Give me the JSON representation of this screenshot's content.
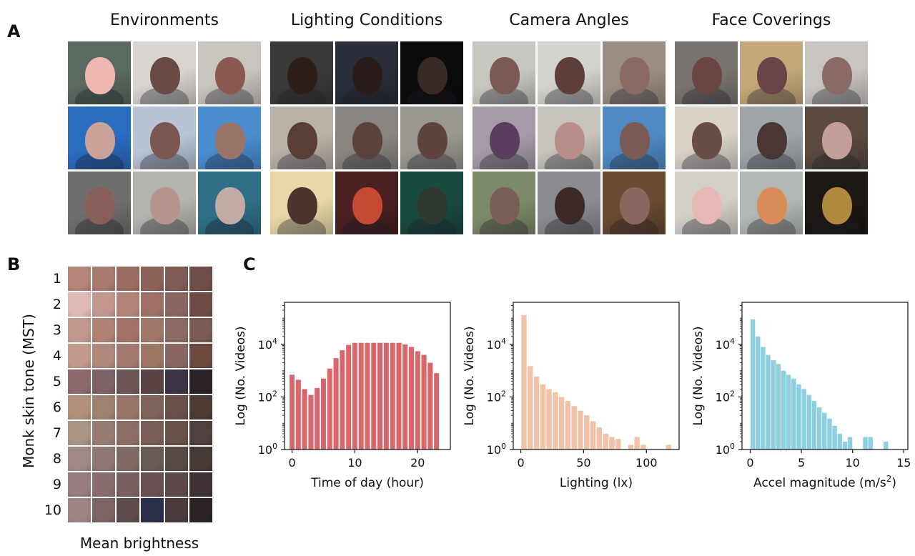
{
  "panels": {
    "a": "A",
    "b": "B",
    "c": "C"
  },
  "panel_a": {
    "groups": [
      {
        "title": "Environments",
        "cells": [
          {
            "bg": "#5a6a60",
            "face": "#eeb8b0"
          },
          {
            "bg": "#d8d4cf",
            "face": "#6a4a46"
          },
          {
            "bg": "#c9c4bd",
            "face": "#8a5a52"
          },
          {
            "bg": "#2a6cc0",
            "face": "#caa29a"
          },
          {
            "bg": "#b8c4d4",
            "face": "#7a5750"
          },
          {
            "bg": "#4a8ed0",
            "face": "#9a7469"
          },
          {
            "bg": "#6f6f6d",
            "face": "#8a5e58"
          },
          {
            "bg": "#b5b3ae",
            "face": "#b7958d"
          },
          {
            "bg": "#2f6f86",
            "face": "#c2aba4"
          }
        ]
      },
      {
        "title": "Lighting Conditions",
        "cells": [
          {
            "bg": "#3c3a38",
            "face": "#2e1e1a"
          },
          {
            "bg": "#2a2e3a",
            "face": "#2a1c1a"
          },
          {
            "bg": "#0c0c0c",
            "face": "#3a2a26"
          },
          {
            "bg": "#b9b2a8",
            "face": "#5a3e36"
          },
          {
            "bg": "#8a8580",
            "face": "#5b433c"
          },
          {
            "bg": "#9a9790",
            "face": "#5e443c"
          },
          {
            "bg": "#e8d8a8",
            "face": "#4a362e"
          },
          {
            "bg": "#4a2020",
            "face": "#c44a34"
          },
          {
            "bg": "#184a40",
            "face": "#2e3830"
          }
        ]
      },
      {
        "title": "Camera Angles",
        "cells": [
          {
            "bg": "#c8c6c0",
            "face": "#7a5a52"
          },
          {
            "bg": "#d4d2cd",
            "face": "#5e3e38"
          },
          {
            "bg": "#9a8e84",
            "face": "#8c6a64"
          },
          {
            "bg": "#a69aa8",
            "face": "#5a3e5e"
          },
          {
            "bg": "#c6c2bc",
            "face": "#b98e88"
          },
          {
            "bg": "#4f8ac4",
            "face": "#7a5a54"
          },
          {
            "bg": "#7c8a6a",
            "face": "#7a5e58"
          },
          {
            "bg": "#8a8c90",
            "face": "#3c2a28"
          },
          {
            "bg": "#6a4a30",
            "face": "#8c6460"
          }
        ]
      },
      {
        "title": "Face Coverings",
        "cells": [
          {
            "bg": "#7a7470",
            "face": "#6a4642"
          },
          {
            "bg": "#c4a878",
            "face": "#6a4448"
          },
          {
            "bg": "#c8c4c0",
            "face": "#8a6a64"
          },
          {
            "bg": "#d8d2c8",
            "face": "#6a4c46"
          },
          {
            "bg": "#9ea4a8",
            "face": "#4a3632"
          },
          {
            "bg": "#5a4a40",
            "face": "#c49e98"
          },
          {
            "bg": "#d4cfc8",
            "face": "#e6b8b4"
          },
          {
            "bg": "#b4b8b4",
            "face": "#d88c58"
          },
          {
            "bg": "#1c1814",
            "face": "#b0883e"
          }
        ]
      }
    ]
  },
  "panel_b": {
    "y_label": "Monk skin tone (MST)",
    "x_label": "Mean brightness",
    "rows": [
      {
        "label": "1",
        "swatches": [
          "#b48478",
          "#a87a70",
          "#9a6c62",
          "#8c625a",
          "#7e5a52",
          "#6e4e48"
        ]
      },
      {
        "label": "2",
        "swatches": [
          "#e0b8b4",
          "#c49690",
          "#b28478",
          "#a07066",
          "#8c6660",
          "#6e4c44"
        ]
      },
      {
        "label": "3",
        "swatches": [
          "#c09890",
          "#b08274",
          "#a27268",
          "#a0786a",
          "#8c6a64",
          "#7a5a54"
        ]
      },
      {
        "label": "4",
        "swatches": [
          "#c49a8a",
          "#b0887c",
          "#a47a70",
          "#9e7664",
          "#8a6662",
          "#6c4a40"
        ]
      },
      {
        "label": "5",
        "swatches": [
          "#8a6a6a",
          "#7c6264",
          "#6c5656",
          "#5c4444",
          "#3c3444",
          "#2c2428"
        ]
      },
      {
        "label": "6",
        "swatches": [
          "#b09078",
          "#a08070",
          "#9a7468",
          "#7e625a",
          "#6a5048",
          "#4c3a34"
        ]
      },
      {
        "label": "7",
        "swatches": [
          "#a89484",
          "#987c74",
          "#8c6e66",
          "#7c5e58",
          "#6a504a",
          "#504040"
        ]
      },
      {
        "label": "8",
        "swatches": [
          "#a08886",
          "#8e7876",
          "#806a66",
          "#6a5a56",
          "#5a4a46",
          "#463a36"
        ]
      },
      {
        "label": "9",
        "swatches": [
          "#9a7c80",
          "#8a6c6e",
          "#7a5e60",
          "#6a5054",
          "#5c4a4a",
          "#3e3234"
        ]
      },
      {
        "label": "10",
        "swatches": [
          "#a08484",
          "#7a6464",
          "#5e4c4c",
          "#2a304a",
          "#4a3c3c",
          "#2c2424"
        ]
      }
    ]
  },
  "chart_data": [
    {
      "type": "bar",
      "color": "#d9666b",
      "ylabel": "Log (No. Videos)",
      "xlabel": "Time of day (hour)",
      "y_scale": "log",
      "ylim": [
        1,
        400000
      ],
      "xlim": [
        -1.2,
        25.2
      ],
      "y_ticks": [
        {
          "value": 1,
          "exp": "0"
        },
        {
          "value": 100,
          "exp": "2"
        },
        {
          "value": 10000,
          "exp": "4"
        }
      ],
      "y_tick_base": "10",
      "x_ticks": [
        "0",
        "10",
        "20"
      ],
      "x_tick_values": [
        0,
        10,
        20
      ],
      "bar_width": 0.8,
      "x": [
        0,
        1,
        2,
        3,
        4,
        5,
        6,
        7,
        8,
        9,
        10,
        11,
        12,
        13,
        14,
        15,
        16,
        17,
        18,
        19,
        20,
        21,
        22,
        23
      ],
      "values": [
        700,
        450,
        200,
        120,
        220,
        500,
        1200,
        3000,
        6000,
        9500,
        11500,
        11500,
        11500,
        11500,
        11500,
        11500,
        11500,
        11500,
        10000,
        8000,
        5500,
        4000,
        2000,
        800
      ]
    },
    {
      "type": "bar",
      "color": "#f2c2a8",
      "ylabel": "Log (No. Videos)",
      "xlabel": "Lighting (lx)",
      "y_scale": "log",
      "ylim": [
        1,
        400000
      ],
      "xlim": [
        -6,
        126
      ],
      "y_ticks": [
        {
          "value": 1,
          "exp": "0"
        },
        {
          "value": 100,
          "exp": "2"
        },
        {
          "value": 10000,
          "exp": "4"
        }
      ],
      "y_tick_base": "10",
      "x_ticks": [
        "0",
        "50",
        "100"
      ],
      "x_tick_values": [
        0,
        50,
        100
      ],
      "bar_width": 4.2,
      "x": [
        2.5,
        7.5,
        12.5,
        17.5,
        22.5,
        27.5,
        32.5,
        37.5,
        42.5,
        47.5,
        52.5,
        57.5,
        62.5,
        67.5,
        72.5,
        77.5,
        82.5,
        87.5,
        92.5,
        97.5,
        102.5,
        107.5,
        112.5,
        117.5
      ],
      "values": [
        130000,
        1500,
        600,
        300,
        200,
        150,
        100,
        70,
        45,
        30,
        20,
        12,
        7,
        4,
        3,
        2.5,
        0,
        1.5,
        3,
        1.5,
        0,
        0,
        0,
        1.5
      ]
    },
    {
      "type": "bar",
      "color": "#8ecfe0",
      "ylabel": "Log (No. Videos)",
      "xlabel": "Accel magnitude (m/s",
      "xlabel_sup": "2",
      "xlabel_tail": ")",
      "y_scale": "log",
      "ylim": [
        1,
        400000
      ],
      "xlim": [
        -0.8,
        15.4
      ],
      "y_ticks": [
        {
          "value": 1,
          "exp": "0"
        },
        {
          "value": 100,
          "exp": "2"
        },
        {
          "value": 10000,
          "exp": "4"
        }
      ],
      "y_tick_base": "10",
      "x_ticks": [
        "0",
        "5",
        "10",
        "15"
      ],
      "x_tick_values": [
        0,
        5,
        10,
        15
      ],
      "bar_width": 0.45,
      "x": [
        0.25,
        0.75,
        1.25,
        1.75,
        2.25,
        2.75,
        3.25,
        3.75,
        4.25,
        4.75,
        5.25,
        5.75,
        6.25,
        6.75,
        7.25,
        7.75,
        8.25,
        8.75,
        9.25,
        9.75,
        10.25,
        10.75,
        11.25,
        11.75,
        12.25,
        12.75,
        13.25
      ],
      "values": [
        90000,
        20000,
        8000,
        4000,
        2500,
        1800,
        1000,
        700,
        500,
        300,
        200,
        120,
        70,
        40,
        25,
        15,
        8,
        4,
        2,
        3,
        0,
        0,
        3,
        3,
        0,
        0,
        2
      ]
    }
  ]
}
